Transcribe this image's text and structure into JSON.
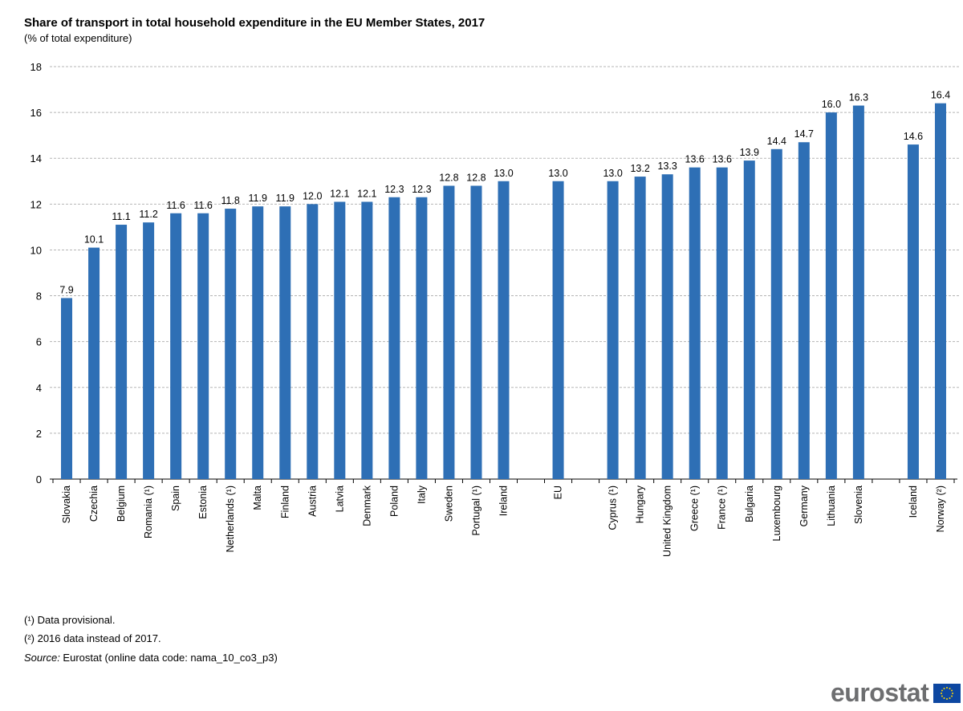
{
  "title": "Share of transport in total household expenditure in the EU Member States, 2017",
  "subtitle": "(% of total expenditure)",
  "chart_data": {
    "type": "bar",
    "categories": [
      "Slovakia",
      "Czechia",
      "Belgium",
      "Romania (¹)",
      "Spain",
      "Estonia",
      "Netherlands (¹)",
      "Malta",
      "Finland",
      "Austria",
      "Latvia",
      "Denmark",
      "Poland",
      "Italy",
      "Sweden",
      "Portugal (¹)",
      "Ireland",
      "",
      "EU",
      "",
      "Cyprus (¹)",
      "Hungary",
      "United Kingdom",
      "Greece (¹)",
      "France (¹)",
      "Bulgaria",
      "Luxembourg",
      "Germany",
      "Lithuania",
      "Slovenia",
      "",
      "Iceland",
      "Norway (²)"
    ],
    "values": [
      7.9,
      10.1,
      11.1,
      11.2,
      11.6,
      11.6,
      11.8,
      11.9,
      11.9,
      12.0,
      12.1,
      12.1,
      12.3,
      12.3,
      12.8,
      12.8,
      13.0,
      null,
      13.0,
      null,
      13.0,
      13.2,
      13.3,
      13.6,
      13.6,
      13.9,
      14.4,
      14.7,
      16.0,
      16.3,
      null,
      14.6,
      16.4
    ],
    "ylim": [
      0,
      18
    ],
    "yticks": [
      0,
      2,
      4,
      6,
      8,
      10,
      12,
      14,
      16,
      18
    ],
    "grid": true,
    "bar_color": "#2e6fb5"
  },
  "footnotes": [
    "(¹) Data provisional.",
    "(²) 2016 data instead of 2017."
  ],
  "source_label": "Source:",
  "source_text": " Eurostat (online data code: nama_10_co3_p3)",
  "logo": "eurostat"
}
